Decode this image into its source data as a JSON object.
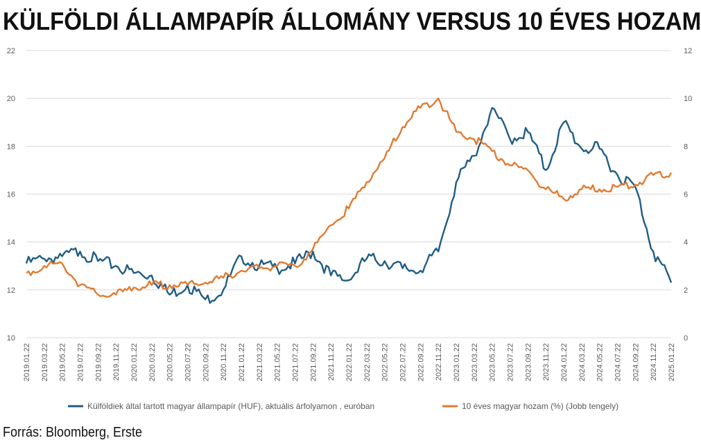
{
  "title": "KÜLFÖLDI ÁLLAMPAPÍR ÁLLOMÁNY VERSUS 10 ÉVES HOZAM",
  "source": "Forrás: Bloomberg, Erste",
  "chart_data": {
    "type": "line",
    "title": "KÜLFÖLDI ÁLLAMPAPÍR ÁLLOMÁNY VERSUS 10 ÉVES HOZAM",
    "x": [
      "2019.01.22",
      "2019.03.22",
      "2019.05.22",
      "2019.07.22",
      "2019.09.22",
      "2019.11.22",
      "2020.01.22",
      "2020.03.22",
      "2020.05.22",
      "2020.07.22",
      "2020.09.22",
      "2020.11.22",
      "2021.01.22",
      "2021.03.22",
      "2021.05.22",
      "2021.07.22",
      "2021.09.22",
      "2021.11.22",
      "2022.01.22",
      "2022.03.22",
      "2022.05.22",
      "2022.07.22",
      "2022.09.22",
      "2022.11.22",
      "2023.01.22",
      "2023.03.22",
      "2023.05.22",
      "2023.07.22",
      "2023.09.22",
      "2023.11.22",
      "2024.01.22",
      "2024.03.22",
      "2024.05.22",
      "2024.07.22",
      "2024.09.22",
      "2024.11.22",
      "2025.01.22"
    ],
    "y_left": {
      "min": 10,
      "max": 22,
      "ticks": [
        10,
        12,
        14,
        16,
        18,
        20,
        22
      ]
    },
    "y_right": {
      "min": 0,
      "max": 12,
      "ticks": [
        0,
        2,
        4,
        6,
        8,
        10,
        12
      ]
    },
    "grid": true,
    "legend_position": "bottom",
    "series": [
      {
        "name": "Külföldiek által tartott magyar állampapír (HUF), aktuális árfolyamon , euróban",
        "axis": "left",
        "color": "#1f5c85",
        "values": [
          13.1,
          13.3,
          13.4,
          13.6,
          13.2,
          13.0,
          12.7,
          12.6,
          11.8,
          12.2,
          11.6,
          12.0,
          13.4,
          13.0,
          12.9,
          13.1,
          13.6,
          12.6,
          12.4,
          13.3,
          13.2,
          12.9,
          12.8,
          13.6,
          16.5,
          17.6,
          19.6,
          18.3,
          18.6,
          17.0,
          19.0,
          17.9,
          17.9,
          16.8,
          16.3,
          13.6,
          12.3
        ]
      },
      {
        "name": "10 éves magyar hozam (%) (Jobb tengely)",
        "axis": "right",
        "color": "#e07a30",
        "values": [
          2.7,
          3.0,
          3.1,
          2.2,
          1.8,
          1.8,
          2.1,
          2.2,
          2.2,
          2.2,
          2.3,
          2.5,
          2.8,
          2.9,
          3.0,
          3.0,
          3.7,
          4.7,
          5.4,
          6.5,
          7.5,
          8.8,
          9.6,
          10.0,
          8.6,
          8.3,
          7.8,
          7.2,
          7.0,
          6.2,
          5.8,
          6.2,
          6.2,
          6.3,
          6.4,
          6.8,
          6.9
        ]
      }
    ]
  }
}
